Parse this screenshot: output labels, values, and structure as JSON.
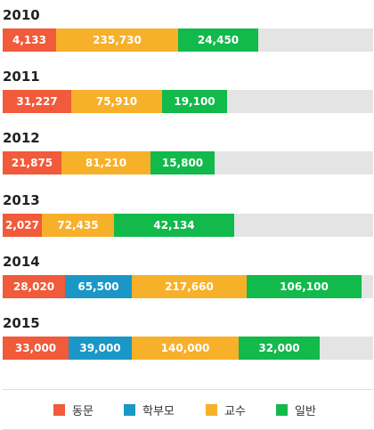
{
  "chart_data": {
    "type": "bar",
    "orientation": "horizontal",
    "stacked": true,
    "categories": [
      "2010",
      "2011",
      "2012",
      "2013",
      "2014",
      "2015"
    ],
    "series": [
      {
        "name": "동문",
        "color": "#f15a3a",
        "values": [
          4133,
          31227,
          21875,
          2027,
          28020,
          33000
        ],
        "labels": [
          "4,133",
          "31,227",
          "21,875",
          "2,027",
          "28,020",
          "33,000"
        ]
      },
      {
        "name": "학부모",
        "color": "#1a97c6",
        "values": [
          0,
          0,
          0,
          0,
          65500,
          39000
        ],
        "labels": [
          "",
          "",
          "",
          "",
          "65,500",
          "39,000"
        ]
      },
      {
        "name": "교수",
        "color": "#f7b02a",
        "values": [
          235730,
          75910,
          81210,
          72435,
          217660,
          140000
        ],
        "labels": [
          "235,730",
          "75,910",
          "81,210",
          "72,435",
          "217,660",
          "140,000"
        ]
      },
      {
        "name": "일반",
        "color": "#12b94b",
        "values": [
          24450,
          19100,
          15800,
          42134,
          106100,
          32000
        ],
        "labels": [
          "24,450",
          "19,100",
          "15,800",
          "42,134",
          "106,100",
          "32,000"
        ]
      }
    ],
    "track_color": "#e4e4e4",
    "legend_position": "bottom"
  }
}
